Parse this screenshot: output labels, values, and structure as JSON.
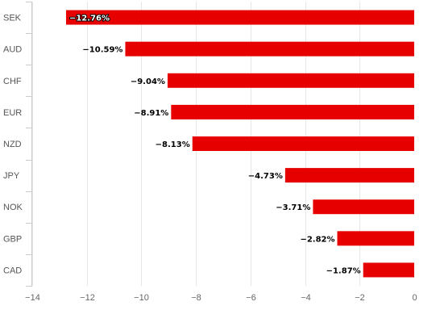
{
  "chart_data": {
    "type": "bar",
    "orientation": "horizontal",
    "title": "",
    "xlabel": "",
    "ylabel": "",
    "categories": [
      "SEK",
      "AUD",
      "CHF",
      "EUR",
      "NZD",
      "JPY",
      "NOK",
      "GBP",
      "CAD"
    ],
    "values": [
      -12.76,
      -10.59,
      -9.04,
      -8.91,
      -8.13,
      -4.73,
      -3.71,
      -2.82,
      -1.87
    ],
    "data_labels": [
      "−12.76%",
      "−10.59%",
      "−9.04%",
      "−8.91%",
      "−8.13%",
      "−4.73%",
      "−3.71%",
      "−2.82%",
      "−1.87%"
    ],
    "xlim": [
      -14,
      0
    ],
    "x_ticks": [
      -14,
      -12,
      -10,
      -8,
      -6,
      -4,
      -2,
      0
    ],
    "x_tick_labels": [
      "−14",
      "−12",
      "−10",
      "−8",
      "−6",
      "−4",
      "−2",
      "0"
    ],
    "grid": true,
    "legend": "none",
    "bar_color": "#e60000",
    "grid_color": "#e6e6e6",
    "axis_color": "#cccccc"
  }
}
